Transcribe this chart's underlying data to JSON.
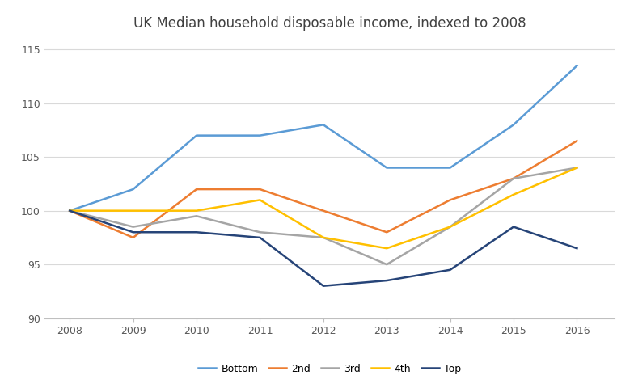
{
  "title": "UK Median household disposable income, indexed to 2008",
  "years": [
    2008,
    2009,
    2010,
    2011,
    2012,
    2013,
    2014,
    2015,
    2016
  ],
  "series": {
    "Bottom": [
      100.0,
      102.0,
      107.0,
      107.0,
      108.0,
      104.0,
      104.0,
      108.0,
      113.5
    ],
    "2nd": [
      100.0,
      97.5,
      102.0,
      102.0,
      100.0,
      98.0,
      101.0,
      103.0,
      106.5
    ],
    "3rd": [
      100.0,
      98.5,
      99.5,
      98.0,
      97.5,
      95.0,
      98.5,
      103.0,
      104.0
    ],
    "4th": [
      100.0,
      100.0,
      100.0,
      101.0,
      97.5,
      96.5,
      98.5,
      101.5,
      104.0
    ],
    "Top": [
      100.0,
      98.0,
      98.0,
      97.5,
      93.0,
      93.5,
      94.5,
      98.5,
      96.5
    ]
  },
  "colors": {
    "Bottom": "#5B9BD5",
    "2nd": "#ED7D31",
    "3rd": "#A5A5A5",
    "4th": "#FFC000",
    "Top": "#264478"
  },
  "ylim": [
    90,
    116
  ],
  "yticks": [
    90,
    95,
    100,
    105,
    110,
    115
  ],
  "xlim_left": 2007.6,
  "xlim_right": 2016.6,
  "background_color": "#FFFFFF",
  "grid_color": "#D9D9D9",
  "linewidth": 1.8,
  "title_fontsize": 12,
  "tick_fontsize": 9,
  "legend_fontsize": 9
}
